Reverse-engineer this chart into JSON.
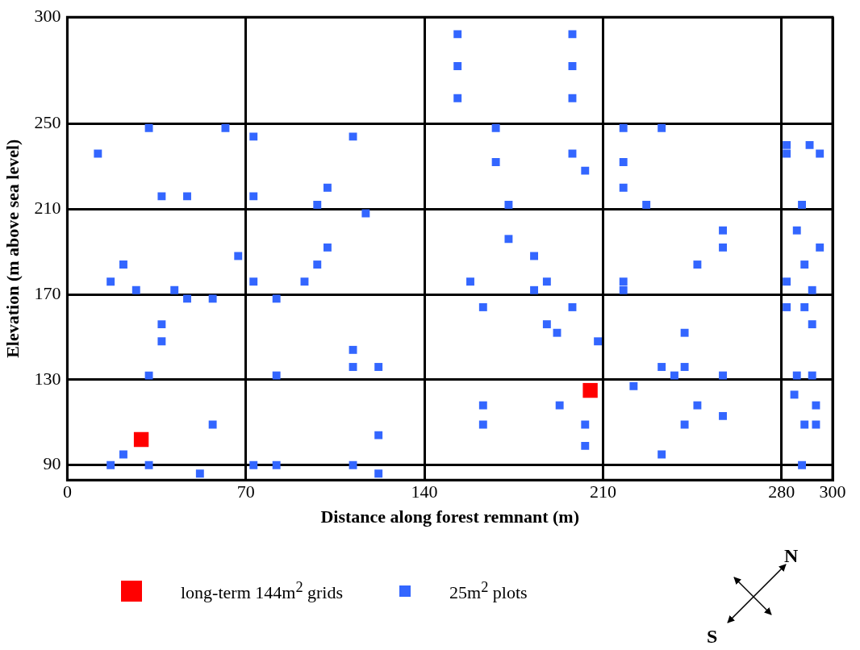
{
  "chart_data": {
    "type": "scatter",
    "xlabel": "Distance along forest remnant (m)",
    "ylabel": "Elevation (m above sea level)",
    "xlim": [
      0,
      300
    ],
    "xticks": [
      0,
      70,
      140,
      210,
      280,
      300
    ],
    "ylim": [
      83,
      300
    ],
    "yticks": [
      90,
      130,
      170,
      210,
      250,
      300
    ],
    "grid": true,
    "legend": "bottom",
    "marker": "square",
    "annotations": [
      "N",
      "S"
    ],
    "series": [
      {
        "name": "long-term 144m$^{2}$ grids",
        "color": "#ff0000",
        "x": [
          29,
          205
        ],
        "values": [
          102,
          125
        ]
      },
      {
        "name": "25m$^{2}$ plots",
        "color": "#3366ff",
        "x": [
          153,
          153,
          153,
          198,
          198,
          198,
          32,
          62,
          12,
          37,
          47,
          73,
          112,
          102,
          73,
          98,
          168,
          168,
          173,
          198,
          203,
          218,
          233,
          218,
          218,
          227,
          282,
          282,
          291,
          295,
          288,
          117,
          102,
          67,
          22,
          98,
          17,
          73,
          93,
          27,
          42,
          173,
          183,
          188,
          158,
          183,
          257,
          257,
          247,
          218,
          218,
          286,
          295,
          289,
          282,
          292,
          47,
          57,
          82,
          37,
          37,
          112,
          112,
          122,
          32,
          82,
          163,
          198,
          188,
          192,
          208,
          242,
          233,
          242,
          238,
          257,
          282,
          289,
          292,
          286,
          292,
          163,
          163,
          57,
          122,
          22,
          17,
          32,
          73,
          82,
          112,
          52,
          122,
          193,
          203,
          203,
          222,
          247,
          257,
          242,
          233,
          285,
          293.5,
          289,
          293.5,
          288
        ],
        "values": [
          292,
          277,
          262,
          292,
          277,
          262,
          248,
          248,
          236,
          216,
          216,
          244,
          244,
          220,
          216,
          212,
          248,
          232,
          212,
          236,
          228,
          248,
          248,
          232,
          220,
          212,
          240,
          236,
          240,
          236,
          212,
          208,
          192,
          188,
          184,
          184,
          176,
          176,
          176,
          172,
          172,
          196,
          188,
          176,
          176,
          172,
          200,
          192,
          184,
          176,
          172,
          200,
          192,
          184,
          176,
          172,
          168,
          168,
          168,
          156,
          148,
          144,
          136,
          136,
          132,
          132,
          164,
          164,
          156,
          152,
          148,
          152,
          136,
          136,
          132,
          132,
          164,
          164,
          156,
          132,
          132,
          118,
          109,
          109,
          104,
          95,
          90,
          90,
          90,
          90,
          90,
          86,
          86,
          118,
          109,
          99,
          127,
          118,
          113,
          109,
          95,
          123,
          118,
          109,
          109,
          90
        ]
      }
    ]
  }
}
